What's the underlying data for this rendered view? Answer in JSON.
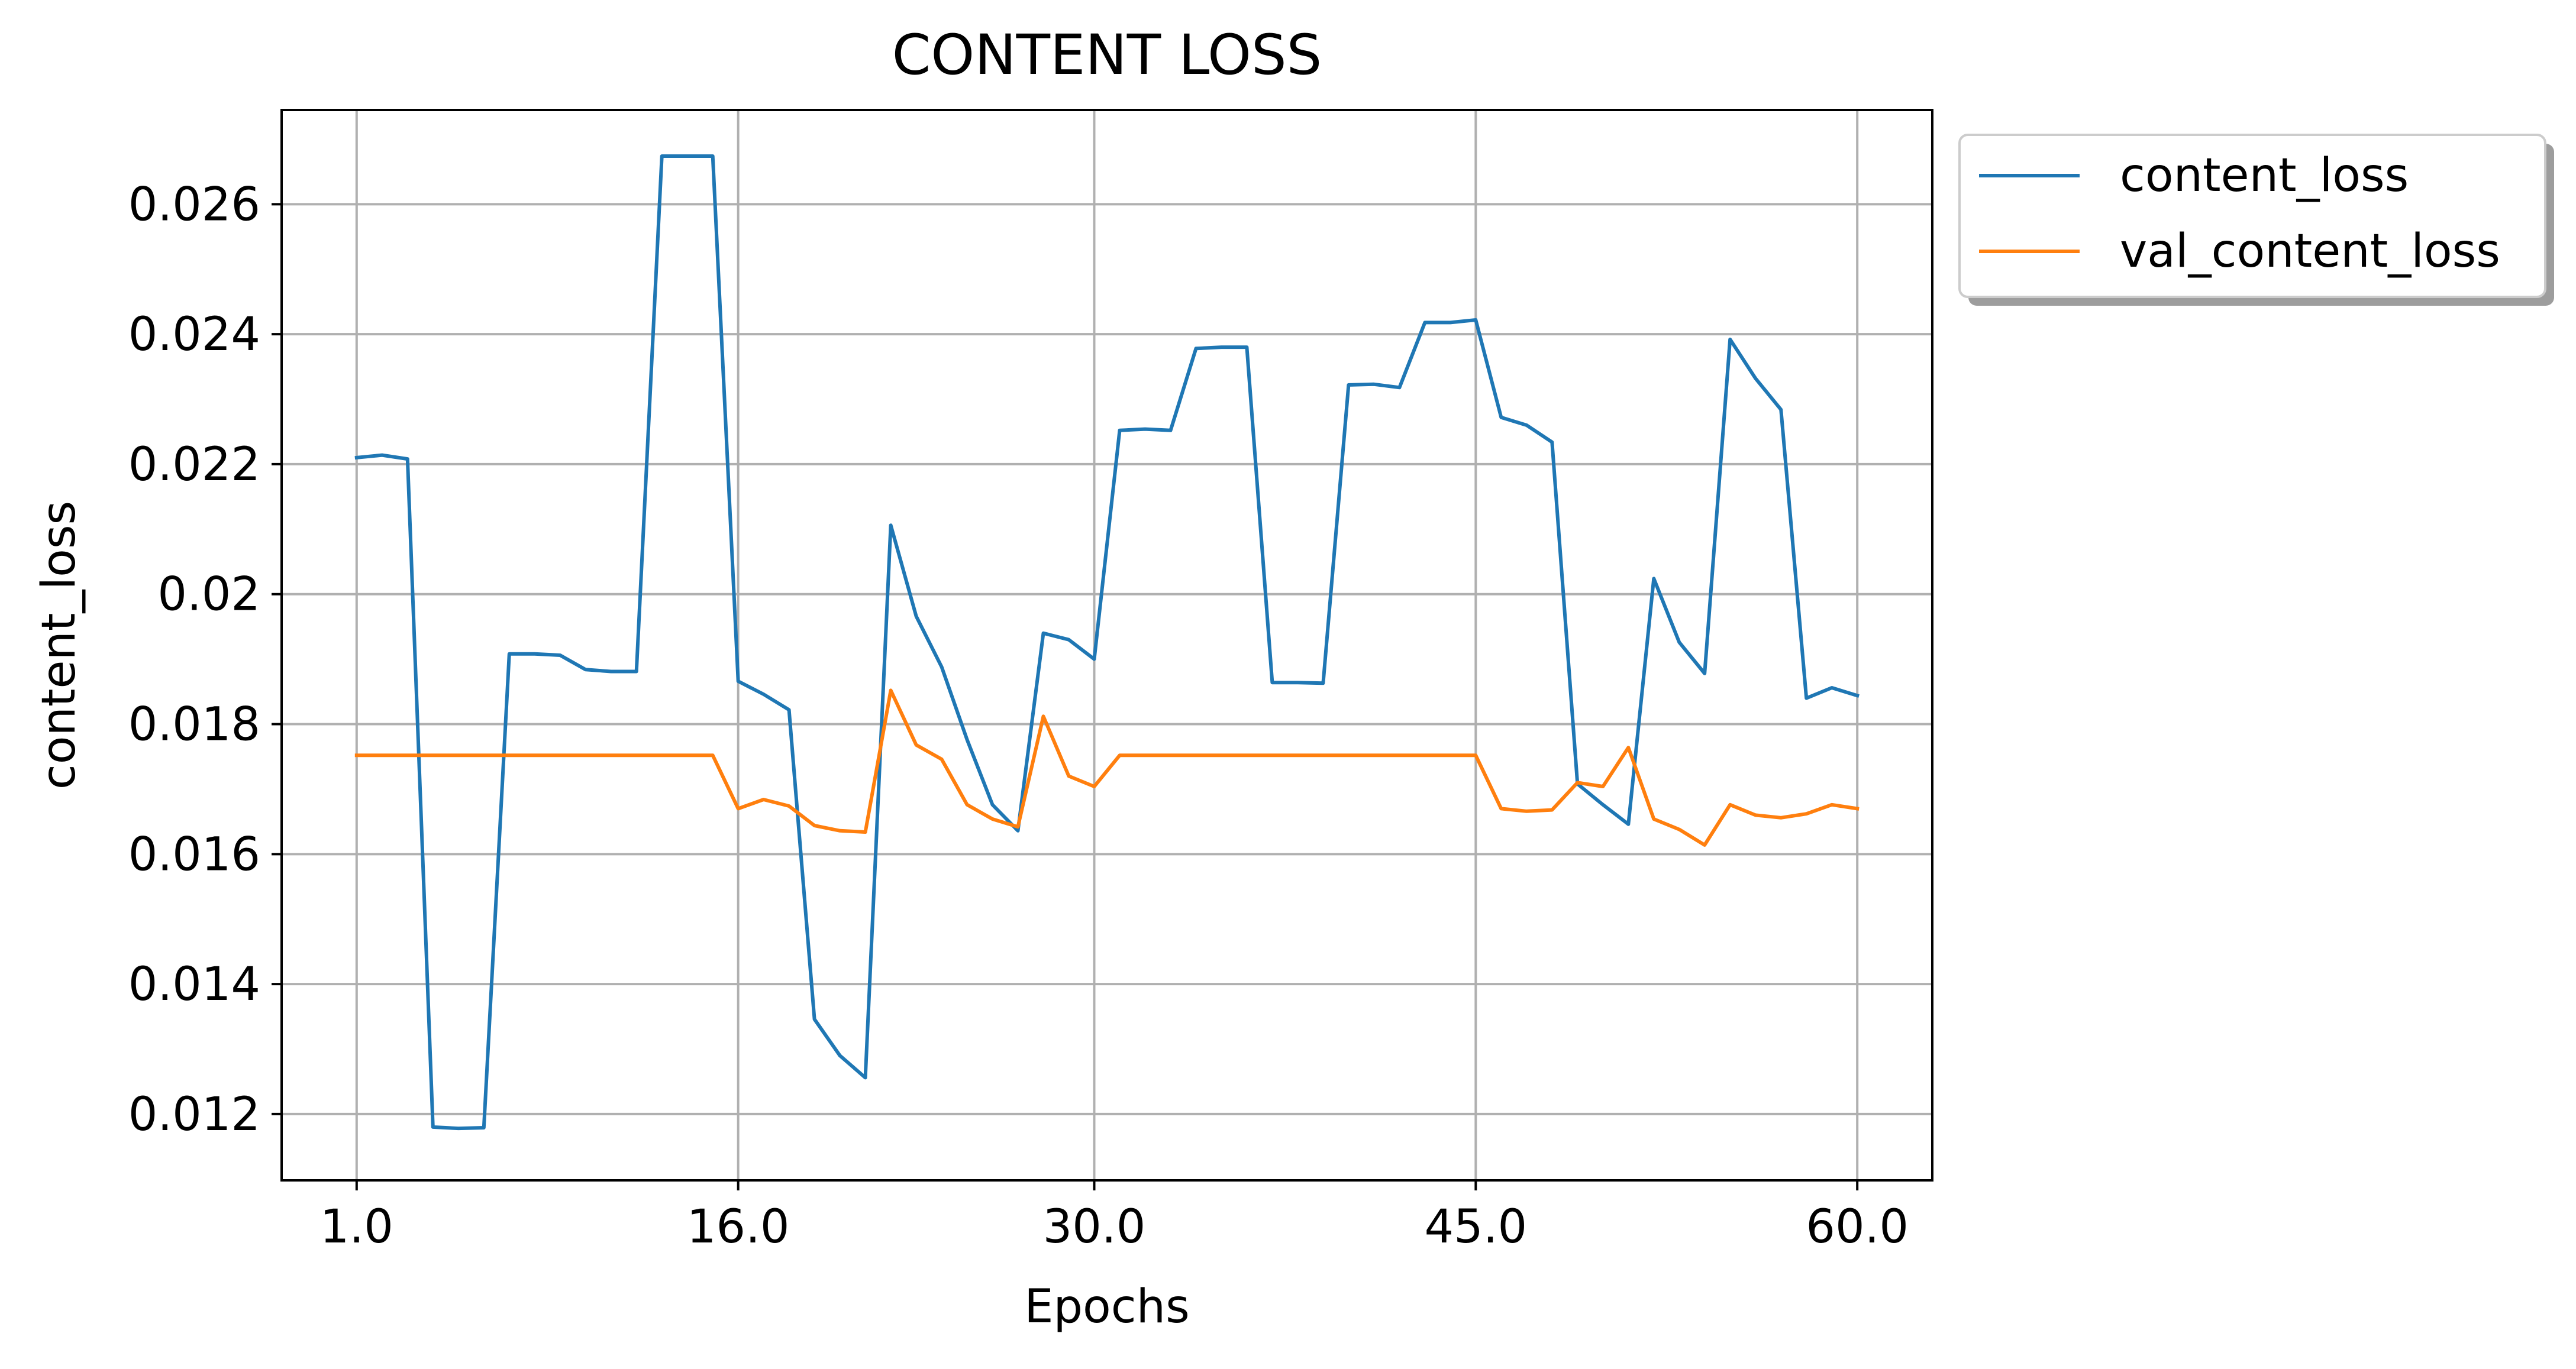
{
  "chart_data": {
    "type": "line",
    "title": "CONTENT LOSS",
    "xlabel": "Epochs",
    "ylabel": "content_loss",
    "x": [
      1,
      2,
      3,
      4,
      5,
      6,
      7,
      8,
      9,
      10,
      11,
      12,
      13,
      14,
      15,
      16,
      17,
      18,
      19,
      20,
      21,
      22,
      23,
      24,
      25,
      26,
      27,
      28,
      29,
      30,
      31,
      32,
      33,
      34,
      35,
      36,
      37,
      38,
      39,
      40,
      41,
      42,
      43,
      44,
      45,
      46,
      47,
      48,
      49,
      50,
      51,
      52,
      53,
      54,
      55,
      56,
      57,
      58,
      59,
      60
    ],
    "xlim": [
      -1.95,
      62.95
    ],
    "ylim": [
      0.01098,
      0.02745
    ],
    "xticks": [
      1,
      16,
      30,
      45,
      60
    ],
    "xtick_labels": [
      "1.0",
      "16.0",
      "30.0",
      "45.0",
      "60.0"
    ],
    "yticks": [
      0.012,
      0.014,
      0.016,
      0.018,
      0.02,
      0.022,
      0.024,
      0.026
    ],
    "ytick_labels": [
      "0.012",
      "0.014",
      "0.016",
      "0.018",
      "0.02",
      "0.022",
      "0.024",
      "0.026"
    ],
    "grid": true,
    "legend_placement": "outside-upper-right",
    "series": [
      {
        "name": "content_loss",
        "color": "#1f77b4",
        "values": [
          0.0221,
          0.02214,
          0.02208,
          0.0118,
          0.01178,
          0.01179,
          0.01908,
          0.01908,
          0.01906,
          0.01884,
          0.01881,
          0.01881,
          0.02674,
          0.02674,
          0.02674,
          0.01866,
          0.01846,
          0.01822,
          0.01346,
          0.0129,
          0.01256,
          0.02106,
          0.01966,
          0.01888,
          0.01776,
          0.01676,
          0.01636,
          0.0194,
          0.0193,
          0.019,
          0.02252,
          0.02254,
          0.02252,
          0.02378,
          0.0238,
          0.0238,
          0.01864,
          0.01864,
          0.01863,
          0.02322,
          0.02323,
          0.02318,
          0.02418,
          0.02418,
          0.02422,
          0.02272,
          0.0226,
          0.02234,
          0.01708,
          0.01676,
          0.01646,
          0.02024,
          0.01926,
          0.01878,
          0.02392,
          0.02332,
          0.02284,
          0.0184,
          0.01856,
          0.01844
        ]
      },
      {
        "name": "val_content_loss",
        "color": "#ff7f0e",
        "values": [
          0.01752,
          0.01752,
          0.01752,
          0.01752,
          0.01752,
          0.01752,
          0.01752,
          0.01752,
          0.01752,
          0.01752,
          0.01752,
          0.01752,
          0.01752,
          0.01752,
          0.01752,
          0.0167,
          0.01684,
          0.01674,
          0.01644,
          0.01636,
          0.01634,
          0.01852,
          0.01768,
          0.01746,
          0.01676,
          0.01654,
          0.01642,
          0.01812,
          0.0172,
          0.01704,
          0.01752,
          0.01752,
          0.01752,
          0.01752,
          0.01752,
          0.01752,
          0.01752,
          0.01752,
          0.01752,
          0.01752,
          0.01752,
          0.01752,
          0.01752,
          0.01752,
          0.01752,
          0.0167,
          0.01666,
          0.01668,
          0.0171,
          0.01704,
          0.01764,
          0.01654,
          0.01638,
          0.01614,
          0.01676,
          0.0166,
          0.01656,
          0.01662,
          0.01676,
          0.0167
        ]
      }
    ]
  }
}
